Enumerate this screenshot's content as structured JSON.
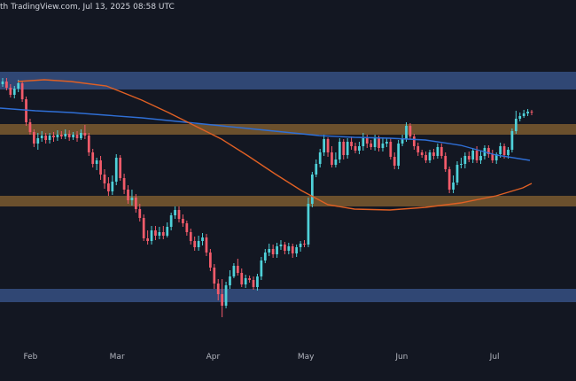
{
  "header": {
    "text": "th TradingView.com, Jul 13, 2025 08:58 UTC"
  },
  "chart_data": {
    "type": "candlestick",
    "title": "",
    "x_tick_labels": [
      "Feb",
      "Mar",
      "Apr",
      "May",
      "Jun",
      "Jul"
    ],
    "x_tick_dates": [
      "2025-02-01",
      "2025-03-01",
      "2025-04-01",
      "2025-05-01",
      "2025-06-01",
      "2025-07-01"
    ],
    "ylim": [
      0,
      430
    ],
    "grid": false,
    "price_axis_shown": false,
    "zones": [
      {
        "name": "resistance-upper",
        "color": "#3c5a94",
        "y_from": 81,
        "y_to": 101
      },
      {
        "name": "resistance-lower",
        "color": "#8d6732",
        "y_from": 140,
        "y_to": 152
      },
      {
        "name": "support-upper",
        "color": "#8d6732",
        "y_from": 221,
        "y_to": 233
      },
      {
        "name": "support-lower",
        "color": "#3c5a94",
        "y_from": 326,
        "y_to": 341
      }
    ],
    "moving_averages": [
      {
        "color": "#2f6fd6",
        "points": [
          [
            0,
            122
          ],
          [
            40,
            125
          ],
          [
            80,
            127
          ],
          [
            120,
            130
          ],
          [
            160,
            133
          ],
          [
            200,
            137
          ],
          [
            240,
            141
          ],
          [
            280,
            145
          ],
          [
            320,
            149
          ],
          [
            360,
            153
          ],
          [
            400,
            155
          ],
          [
            440,
            156
          ],
          [
            480,
            158
          ],
          [
            520,
            164
          ],
          [
            560,
            175
          ],
          [
            598,
            181
          ]
        ]
      },
      {
        "color": "#e06024",
        "points": [
          [
            20,
            92
          ],
          [
            50,
            90
          ],
          [
            80,
            92
          ],
          [
            120,
            97
          ],
          [
            160,
            113
          ],
          [
            190,
            127
          ],
          [
            220,
            142
          ],
          [
            250,
            157
          ],
          [
            280,
            176
          ],
          [
            310,
            196
          ],
          [
            340,
            215
          ],
          [
            370,
            231
          ],
          [
            400,
            236
          ],
          [
            440,
            237
          ],
          [
            480,
            234
          ],
          [
            520,
            229
          ],
          [
            560,
            221
          ],
          [
            590,
            212
          ],
          [
            600,
            207
          ]
        ]
      }
    ],
    "candles": {
      "up_color": "#4fd1d9",
      "down_color": "#f25b6a",
      "ohlc": [
        [
          95,
          92,
          98,
          88
        ],
        [
          92,
          99,
          102,
          88
        ],
        [
          99,
          107,
          110,
          95
        ],
        [
          107,
          100,
          111,
          97
        ],
        [
          100,
          94,
          104,
          90
        ],
        [
          94,
          112,
          115,
          91
        ],
        [
          112,
          138,
          142,
          109
        ],
        [
          138,
          149,
          152,
          134
        ],
        [
          149,
          162,
          166,
          146
        ],
        [
          162,
          156,
          169,
          150
        ],
        [
          156,
          153,
          160,
          148
        ],
        [
          153,
          158,
          162,
          150
        ],
        [
          158,
          153,
          162,
          150
        ],
        [
          153,
          155,
          160,
          149
        ],
        [
          155,
          152,
          159,
          147
        ],
        [
          152,
          154,
          157,
          148
        ],
        [
          154,
          151,
          157,
          146
        ],
        [
          151,
          155,
          159,
          147
        ],
        [
          155,
          152,
          158,
          149
        ],
        [
          152,
          156,
          160,
          148
        ],
        [
          156,
          150,
          158,
          146
        ],
        [
          150,
          153,
          157,
          141
        ],
        [
          153,
          172,
          176,
          150
        ],
        [
          172,
          185,
          189,
          168
        ],
        [
          185,
          181,
          192,
          178
        ],
        [
          181,
          197,
          203,
          176
        ],
        [
          197,
          207,
          213,
          191
        ],
        [
          207,
          216,
          221,
          200
        ],
        [
          216,
          205,
          220,
          198
        ],
        [
          205,
          178,
          209,
          174
        ],
        [
          178,
          201,
          204,
          175
        ],
        [
          201,
          214,
          219,
          196
        ],
        [
          214,
          226,
          230,
          209
        ],
        [
          226,
          223,
          232,
          214
        ],
        [
          223,
          236,
          240,
          219
        ],
        [
          236,
          246,
          250,
          230
        ],
        [
          246,
          269,
          272,
          242
        ],
        [
          269,
          272,
          276,
          260
        ],
        [
          272,
          260,
          276,
          255
        ],
        [
          260,
          266,
          271,
          255
        ],
        [
          266,
          262,
          270,
          256
        ],
        [
          262,
          266,
          270,
          255
        ],
        [
          266,
          256,
          268,
          251
        ],
        [
          256,
          243,
          260,
          240
        ],
        [
          243,
          237,
          247,
          233
        ],
        [
          237,
          247,
          251,
          233
        ],
        [
          247,
          252,
          256,
          242
        ],
        [
          252,
          262,
          266,
          249
        ],
        [
          262,
          272,
          276,
          258
        ],
        [
          272,
          279,
          283,
          267
        ],
        [
          279,
          272,
          283,
          266
        ],
        [
          272,
          268,
          277,
          263
        ],
        [
          268,
          285,
          289,
          264
        ],
        [
          285,
          302,
          306,
          281
        ],
        [
          302,
          320,
          326,
          298
        ],
        [
          320,
          332,
          339,
          315
        ],
        [
          332,
          345,
          358,
          315
        ],
        [
          345,
          322,
          348,
          318
        ],
        [
          322,
          312,
          326,
          305
        ],
        [
          312,
          300,
          314,
          297
        ],
        [
          300,
          308,
          311,
          292
        ],
        [
          308,
          321,
          324,
          303
        ],
        [
          321,
          314,
          325,
          310
        ],
        [
          314,
          316,
          319,
          311
        ],
        [
          316,
          324,
          327,
          312
        ],
        [
          324,
          312,
          328,
          309
        ],
        [
          312,
          294,
          316,
          290
        ],
        [
          294,
          285,
          297,
          281
        ],
        [
          285,
          281,
          289,
          275
        ],
        [
          281,
          287,
          291,
          276
        ],
        [
          287,
          278,
          291,
          274
        ],
        [
          278,
          276,
          282,
          271
        ],
        [
          276,
          283,
          287,
          273
        ],
        [
          283,
          278,
          287,
          274
        ],
        [
          278,
          286,
          291,
          275
        ],
        [
          286,
          279,
          290,
          276
        ],
        [
          279,
          275,
          284,
          272
        ],
        [
          275,
          276,
          279,
          271
        ],
        [
          276,
          230,
          279,
          223
        ],
        [
          230,
          197,
          234,
          194
        ],
        [
          197,
          185,
          200,
          180
        ],
        [
          185,
          172,
          189,
          168
        ],
        [
          172,
          157,
          176,
          152
        ],
        [
          157,
          172,
          177,
          155
        ],
        [
          172,
          186,
          189,
          165
        ],
        [
          186,
          180,
          189,
          172
        ],
        [
          180,
          160,
          184,
          156
        ],
        [
          160,
          175,
          180,
          157
        ],
        [
          175,
          160,
          179,
          156
        ],
        [
          160,
          165,
          169,
          154
        ],
        [
          165,
          170,
          173,
          161
        ],
        [
          170,
          165,
          174,
          160
        ],
        [
          165,
          156,
          170,
          150
        ],
        [
          156,
          162,
          167,
          152
        ],
        [
          162,
          166,
          169,
          158
        ],
        [
          166,
          156,
          170,
          152
        ],
        [
          156,
          167,
          171,
          153
        ],
        [
          167,
          162,
          171,
          155
        ],
        [
          162,
          160,
          166,
          156
        ],
        [
          160,
          177,
          180,
          156
        ],
        [
          177,
          187,
          191,
          172
        ],
        [
          187,
          162,
          191,
          158
        ],
        [
          162,
          157,
          165,
          152
        ],
        [
          157,
          142,
          160,
          138
        ],
        [
          142,
          154,
          157,
          139
        ],
        [
          154,
          165,
          169,
          151
        ],
        [
          165,
          172,
          176,
          161
        ],
        [
          172,
          175,
          178,
          169
        ],
        [
          175,
          181,
          184,
          171
        ],
        [
          181,
          172,
          184,
          169
        ],
        [
          172,
          176,
          180,
          168
        ],
        [
          176,
          166,
          179,
          162
        ],
        [
          166,
          176,
          179,
          162
        ],
        [
          176,
          191,
          194,
          172
        ],
        [
          191,
          214,
          218,
          188
        ],
        [
          214,
          206,
          218,
          198
        ],
        [
          206,
          186,
          209,
          182
        ],
        [
          186,
          185,
          190,
          178
        ],
        [
          185,
          176,
          190,
          172
        ],
        [
          176,
          180,
          183,
          171
        ],
        [
          180,
          170,
          184,
          167
        ],
        [
          170,
          181,
          184,
          165
        ],
        [
          181,
          176,
          185,
          170
        ],
        [
          176,
          167,
          180,
          164
        ],
        [
          167,
          174,
          178,
          164
        ],
        [
          174,
          181,
          184,
          169
        ],
        [
          181,
          174,
          185,
          172
        ],
        [
          174,
          165,
          178,
          161
        ],
        [
          165,
          175,
          179,
          162
        ],
        [
          175,
          169,
          179,
          166
        ],
        [
          169,
          148,
          172,
          145
        ],
        [
          148,
          134,
          151,
          125
        ],
        [
          134,
          131,
          137,
          127
        ],
        [
          131,
          128,
          133,
          124
        ],
        [
          128,
          126,
          131,
          123
        ],
        [
          126,
          127,
          130,
          124
        ]
      ]
    }
  }
}
